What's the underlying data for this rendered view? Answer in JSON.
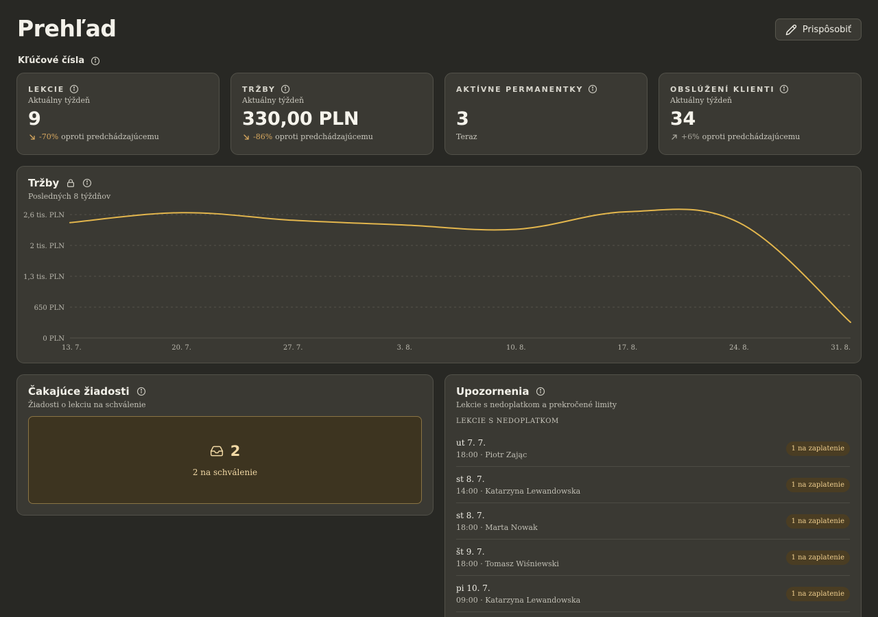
{
  "page": {
    "title": "Prehľad"
  },
  "header": {
    "customize_label": "Prispôsobiť"
  },
  "key_numbers": {
    "label": "Kľúčové čísla",
    "cards": [
      {
        "title": "LEKCIE",
        "subtitle": "Aktuálny týždeň",
        "value": "9",
        "delta": "-70%",
        "delta_text": "oproti predchádzajúcemu",
        "trend": "down"
      },
      {
        "title": "TRŽBY",
        "subtitle": "Aktuálny týždeň",
        "value": "330,00 PLN",
        "delta": "-86%",
        "delta_text": "oproti predchádzajúcemu",
        "trend": "down"
      },
      {
        "title": "AKTÍVNE PERMANENTKY",
        "subtitle": "",
        "value": "3",
        "delta": "",
        "delta_text": "Teraz",
        "trend": "none"
      },
      {
        "title": "OBSLÚŽENÍ KLIENTI",
        "subtitle": "Aktuálny týždeň",
        "value": "34",
        "delta": "+6%",
        "delta_text": "oproti predchádzajúcemu",
        "trend": "up"
      }
    ]
  },
  "revenue_chart": {
    "title": "Tržby",
    "subtitle": "Posledných 8 týždňov"
  },
  "chart_data": {
    "type": "line",
    "title": "Tržby",
    "subtitle": "Posledných 8 týždňov",
    "categories": [
      "13. 7.",
      "20. 7.",
      "27. 7.",
      "3. 8.",
      "10. 8.",
      "17. 8.",
      "24. 8.",
      "31. 8."
    ],
    "series": [
      {
        "values": [
          2430,
          2640,
          2480,
          2380,
          2290,
          2660,
          2430,
          330
        ]
      }
    ],
    "y_ticks": [
      {
        "value": 0,
        "label": "0 PLN"
      },
      {
        "value": 650,
        "label": "650 PLN"
      },
      {
        "value": 1300,
        "label": "1,3 tis. PLN"
      },
      {
        "value": 1950,
        "label": "2 tis. PLN"
      },
      {
        "value": 2600,
        "label": "2,6 tis. PLN"
      }
    ],
    "ylim": [
      0,
      2600
    ],
    "grid": true,
    "line_color": "#e3b64d"
  },
  "pending_requests": {
    "title": "Čakajúce žiadosti",
    "subtitle": "Žiadosti o lekciu na schválenie",
    "count": "2",
    "count_text": "2 na schválenie"
  },
  "alerts": {
    "title": "Upozornenia",
    "subtitle": "Lekcie s nedoplatkom a prekročené limity",
    "section_label": "LEKCIE S NEDOPLATKOM",
    "items": [
      {
        "date": "ut 7. 7.",
        "meta": "18:00 · Piotr Zając",
        "badge": "1 na zaplatenie"
      },
      {
        "date": "st 8. 7.",
        "meta": "14:00 · Katarzyna Lewandowska",
        "badge": "1 na zaplatenie"
      },
      {
        "date": "st 8. 7.",
        "meta": "18:00 · Marta Nowak",
        "badge": "1 na zaplatenie"
      },
      {
        "date": "št 9. 7.",
        "meta": "18:00 · Tomasz Wiśniewski",
        "badge": "1 na zaplatenie"
      },
      {
        "date": "pi 10. 7.",
        "meta": "09:00 · Katarzyna Lewandowska",
        "badge": "1 na zaplatenie"
      }
    ]
  }
}
